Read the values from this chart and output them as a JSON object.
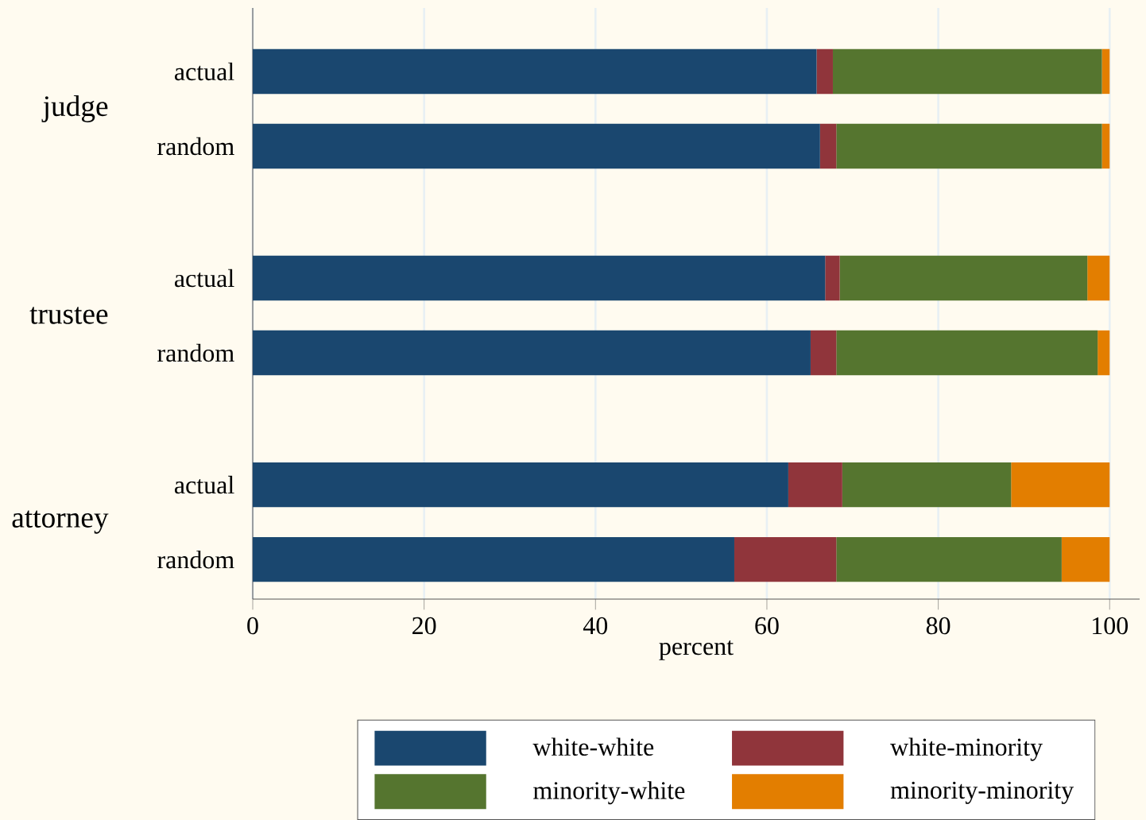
{
  "chart_data": {
    "type": "bar",
    "orientation": "horizontal",
    "stacked": true,
    "categories": [
      "actual",
      "random",
      "actual",
      "random",
      "actual",
      "random"
    ],
    "annotations": [
      "judge",
      "trustee",
      "attorney"
    ],
    "xlabel": "percent",
    "xlim": [
      0,
      103.5
    ],
    "xticks": [
      0,
      20,
      40,
      60,
      80,
      100
    ],
    "grid": "x",
    "legend": "bottom",
    "series": [
      {
        "name": "white-white",
        "color": "#1a476f",
        "values": [
          65.8,
          66.2,
          66.8,
          65.1,
          62.5,
          56.2
        ]
      },
      {
        "name": "white-minority",
        "color": "#90353b",
        "values": [
          1.9,
          1.9,
          1.7,
          3.0,
          6.3,
          11.9
        ]
      },
      {
        "name": "minority-white",
        "color": "#55752f",
        "values": [
          31.4,
          31.0,
          28.9,
          30.5,
          19.7,
          26.3
        ]
      },
      {
        "name": "minority-minority",
        "color": "#e37e00",
        "values": [
          0.9,
          0.9,
          2.6,
          1.4,
          11.5,
          5.6
        ]
      }
    ]
  }
}
